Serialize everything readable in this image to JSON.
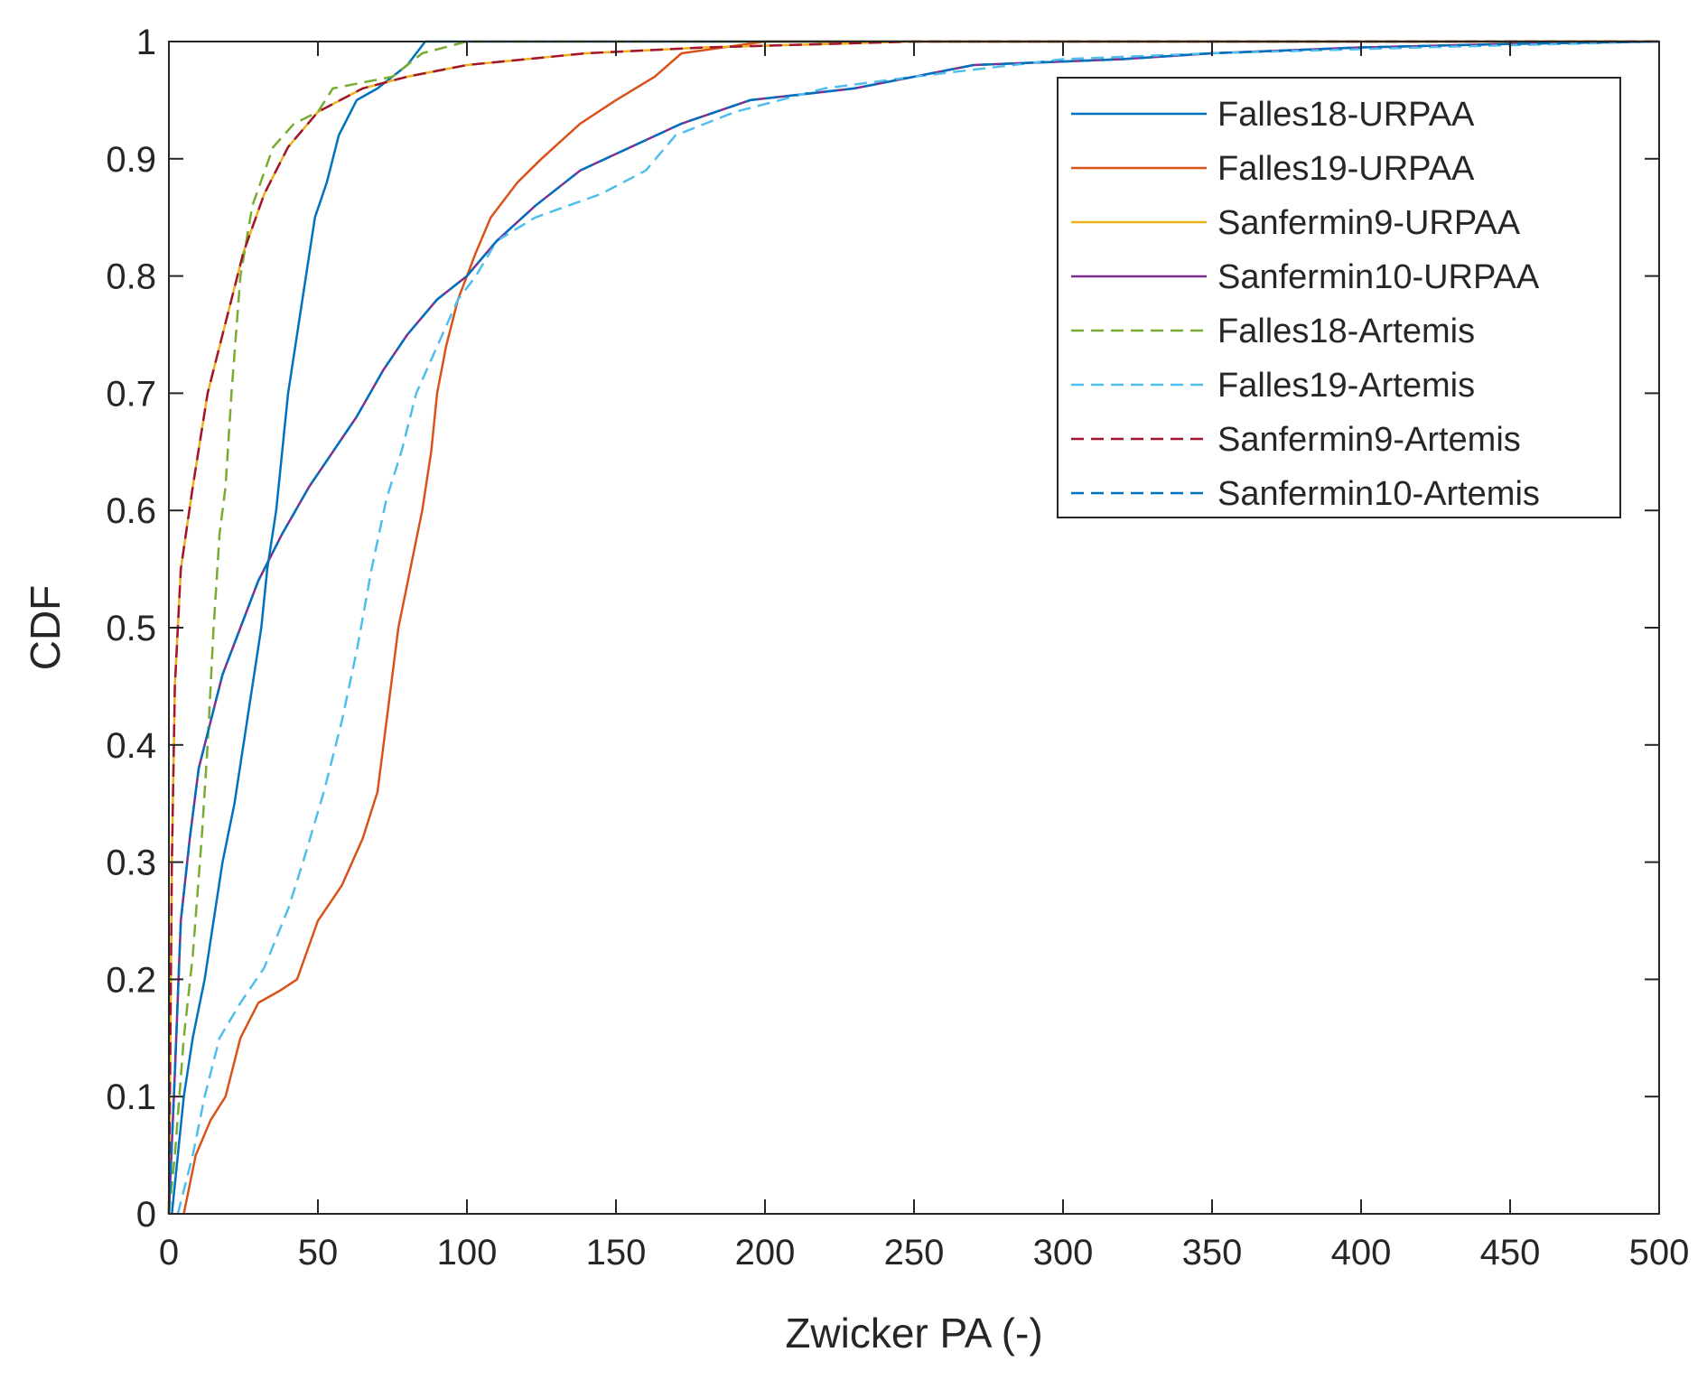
{
  "chart_data": {
    "type": "line",
    "xlabel": "Zwicker PA (-)",
    "ylabel": "CDF",
    "xlim": [
      0,
      500
    ],
    "ylim": [
      0,
      1
    ],
    "xticks": [
      0,
      50,
      100,
      150,
      200,
      250,
      300,
      350,
      400,
      450,
      500
    ],
    "yticks": [
      0,
      0.1,
      0.2,
      0.3,
      0.4,
      0.5,
      0.6,
      0.7,
      0.8,
      0.9,
      1
    ],
    "xtick_labels": [
      "0",
      "50",
      "100",
      "150",
      "200",
      "250",
      "300",
      "350",
      "400",
      "450",
      "500"
    ],
    "ytick_labels": [
      "0",
      "0.1",
      "0.2",
      "0.3",
      "0.4",
      "0.5",
      "0.6",
      "0.7",
      "0.8",
      "0.9",
      "1"
    ],
    "grid": false,
    "legend_position": "top-right",
    "series": [
      {
        "name": "Falles18-URPAA",
        "color": "#0072BD",
        "dash": "solid",
        "points": [
          [
            1,
            0
          ],
          [
            3,
            0.05
          ],
          [
            5,
            0.1
          ],
          [
            8,
            0.15
          ],
          [
            12,
            0.2
          ],
          [
            15,
            0.25
          ],
          [
            18,
            0.3
          ],
          [
            22,
            0.35
          ],
          [
            25,
            0.4
          ],
          [
            28,
            0.45
          ],
          [
            31,
            0.5
          ],
          [
            33,
            0.55
          ],
          [
            36,
            0.6
          ],
          [
            38,
            0.65
          ],
          [
            40,
            0.7
          ],
          [
            43,
            0.75
          ],
          [
            46,
            0.8
          ],
          [
            49,
            0.85
          ],
          [
            53,
            0.88
          ],
          [
            57,
            0.92
          ],
          [
            63,
            0.95
          ],
          [
            70,
            0.96
          ],
          [
            80,
            0.98
          ],
          [
            86,
            1
          ],
          [
            500,
            1
          ]
        ]
      },
      {
        "name": "Falles19-URPAA",
        "color": "#D95319",
        "dash": "solid",
        "points": [
          [
            5,
            0
          ],
          [
            9,
            0.05
          ],
          [
            14,
            0.08
          ],
          [
            19,
            0.1
          ],
          [
            24,
            0.15
          ],
          [
            30,
            0.18
          ],
          [
            37,
            0.19
          ],
          [
            43,
            0.2
          ],
          [
            50,
            0.25
          ],
          [
            58,
            0.28
          ],
          [
            65,
            0.32
          ],
          [
            70,
            0.36
          ],
          [
            73,
            0.42
          ],
          [
            77,
            0.5
          ],
          [
            81,
            0.55
          ],
          [
            85,
            0.6
          ],
          [
            88,
            0.65
          ],
          [
            90,
            0.7
          ],
          [
            93,
            0.74
          ],
          [
            97,
            0.78
          ],
          [
            103,
            0.82
          ],
          [
            108,
            0.85
          ],
          [
            117,
            0.88
          ],
          [
            125,
            0.9
          ],
          [
            138,
            0.93
          ],
          [
            150,
            0.95
          ],
          [
            163,
            0.97
          ],
          [
            172,
            0.99
          ],
          [
            200,
            1
          ],
          [
            500,
            1
          ]
        ]
      },
      {
        "name": "Sanfermin9-URPAA",
        "color": "#EDB120",
        "dash": "solid",
        "points": [
          [
            0,
            0
          ],
          [
            1,
            0.3
          ],
          [
            2,
            0.45
          ],
          [
            4,
            0.55
          ],
          [
            8,
            0.62
          ],
          [
            13,
            0.7
          ],
          [
            19,
            0.76
          ],
          [
            25,
            0.82
          ],
          [
            32,
            0.87
          ],
          [
            40,
            0.91
          ],
          [
            50,
            0.94
          ],
          [
            65,
            0.96
          ],
          [
            80,
            0.97
          ],
          [
            100,
            0.98
          ],
          [
            140,
            0.99
          ],
          [
            180,
            0.995
          ],
          [
            250,
            1
          ],
          [
            500,
            1
          ]
        ]
      },
      {
        "name": "Sanfermin10-URPAA",
        "color": "#7E2F8E",
        "dash": "solid",
        "points": [
          [
            0,
            0
          ],
          [
            2,
            0.12
          ],
          [
            4,
            0.25
          ],
          [
            7,
            0.32
          ],
          [
            10,
            0.38
          ],
          [
            14,
            0.42
          ],
          [
            18,
            0.46
          ],
          [
            24,
            0.5
          ],
          [
            30,
            0.54
          ],
          [
            38,
            0.58
          ],
          [
            47,
            0.62
          ],
          [
            55,
            0.65
          ],
          [
            63,
            0.68
          ],
          [
            72,
            0.72
          ],
          [
            80,
            0.75
          ],
          [
            90,
            0.78
          ],
          [
            100,
            0.8
          ],
          [
            110,
            0.83
          ],
          [
            123,
            0.86
          ],
          [
            138,
            0.89
          ],
          [
            155,
            0.91
          ],
          [
            172,
            0.93
          ],
          [
            195,
            0.95
          ],
          [
            230,
            0.96
          ],
          [
            270,
            0.98
          ],
          [
            320,
            0.985
          ],
          [
            350,
            0.99
          ],
          [
            400,
            0.995
          ],
          [
            450,
            0.998
          ],
          [
            500,
            1
          ]
        ]
      },
      {
        "name": "Falles18-Artemis",
        "color": "#77AC30",
        "dash": "dashed",
        "points": [
          [
            0,
            0
          ],
          [
            2,
            0.05
          ],
          [
            5,
            0.15
          ],
          [
            8,
            0.22
          ],
          [
            11,
            0.32
          ],
          [
            13,
            0.4
          ],
          [
            15,
            0.5
          ],
          [
            17,
            0.58
          ],
          [
            19,
            0.62
          ],
          [
            21,
            0.7
          ],
          [
            24,
            0.8
          ],
          [
            28,
            0.86
          ],
          [
            35,
            0.91
          ],
          [
            42,
            0.93
          ],
          [
            50,
            0.94
          ],
          [
            55,
            0.96
          ],
          [
            75,
            0.97
          ],
          [
            85,
            0.99
          ],
          [
            100,
            1
          ],
          [
            500,
            1
          ]
        ]
      },
      {
        "name": "Falles19-Artemis",
        "color": "#4DBEEE",
        "dash": "dashed",
        "points": [
          [
            3,
            0
          ],
          [
            8,
            0.05
          ],
          [
            12,
            0.1
          ],
          [
            17,
            0.15
          ],
          [
            24,
            0.18
          ],
          [
            32,
            0.21
          ],
          [
            40,
            0.26
          ],
          [
            45,
            0.3
          ],
          [
            52,
            0.36
          ],
          [
            58,
            0.42
          ],
          [
            63,
            0.48
          ],
          [
            68,
            0.55
          ],
          [
            73,
            0.61
          ],
          [
            78,
            0.65
          ],
          [
            83,
            0.7
          ],
          [
            90,
            0.74
          ],
          [
            97,
            0.78
          ],
          [
            103,
            0.8
          ],
          [
            110,
            0.83
          ],
          [
            123,
            0.85
          ],
          [
            145,
            0.87
          ],
          [
            160,
            0.89
          ],
          [
            170,
            0.92
          ],
          [
            190,
            0.94
          ],
          [
            220,
            0.96
          ],
          [
            250,
            0.97
          ],
          [
            300,
            0.985
          ],
          [
            350,
            0.99
          ],
          [
            420,
            0.995
          ],
          [
            500,
            1
          ]
        ]
      },
      {
        "name": "Sanfermin9-Artemis",
        "color": "#A2142F",
        "dash": "dashed",
        "points": [
          [
            0,
            0
          ],
          [
            1,
            0.3
          ],
          [
            2,
            0.45
          ],
          [
            4,
            0.55
          ],
          [
            8,
            0.62
          ],
          [
            13,
            0.7
          ],
          [
            19,
            0.76
          ],
          [
            25,
            0.82
          ],
          [
            32,
            0.87
          ],
          [
            40,
            0.91
          ],
          [
            50,
            0.94
          ],
          [
            65,
            0.96
          ],
          [
            80,
            0.97
          ],
          [
            100,
            0.98
          ],
          [
            140,
            0.99
          ],
          [
            180,
            0.995
          ],
          [
            250,
            1
          ],
          [
            500,
            1
          ]
        ]
      },
      {
        "name": "Sanfermin10-Artemis",
        "color": "#0072BD",
        "dash": "dashed",
        "points": [
          [
            0,
            0
          ],
          [
            2,
            0.12
          ],
          [
            4,
            0.25
          ],
          [
            7,
            0.32
          ],
          [
            10,
            0.38
          ],
          [
            14,
            0.42
          ],
          [
            18,
            0.46
          ],
          [
            24,
            0.5
          ],
          [
            30,
            0.54
          ],
          [
            38,
            0.58
          ],
          [
            47,
            0.62
          ],
          [
            55,
            0.65
          ],
          [
            63,
            0.68
          ],
          [
            72,
            0.72
          ],
          [
            80,
            0.75
          ],
          [
            90,
            0.78
          ],
          [
            100,
            0.8
          ],
          [
            110,
            0.83
          ],
          [
            123,
            0.86
          ],
          [
            138,
            0.89
          ],
          [
            155,
            0.91
          ],
          [
            172,
            0.93
          ],
          [
            195,
            0.95
          ],
          [
            230,
            0.96
          ],
          [
            270,
            0.98
          ],
          [
            320,
            0.985
          ],
          [
            350,
            0.99
          ],
          [
            400,
            0.995
          ],
          [
            450,
            0.998
          ],
          [
            500,
            1
          ]
        ]
      }
    ]
  }
}
